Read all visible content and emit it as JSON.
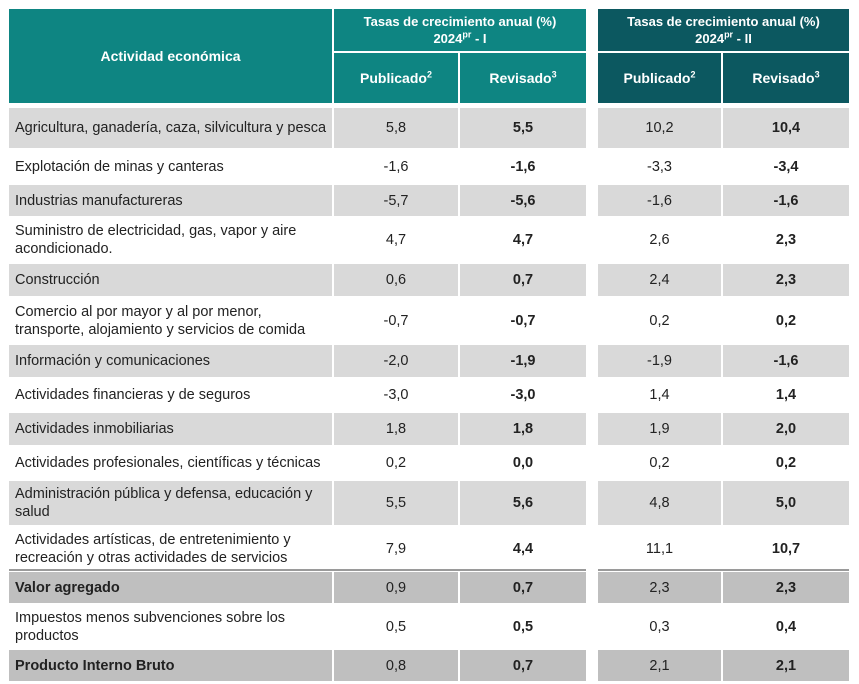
{
  "header": {
    "activity": "Actividad económica",
    "group1": {
      "title": "Tasas de crecimiento anual (%)",
      "year": "2024",
      "year_sup": "pr",
      "period": " - I"
    },
    "group2": {
      "title": "Tasas de crecimiento anual (%)",
      "year": "2024",
      "year_sup": "pr",
      "period": " - II"
    },
    "published": "Publicado",
    "published_sup": "2",
    "revised": "Revisado",
    "revised_sup": "3"
  },
  "rows": [
    {
      "label": "Agricultura, ganadería, caza, silvicultura y pesca",
      "pub1": "5,8",
      "rev1": "5,5",
      "pub2": "10,2",
      "rev2": "10,4"
    },
    {
      "label": "Explotación de minas y canteras",
      "pub1": "-1,6",
      "rev1": "-1,6",
      "pub2": "-3,3",
      "rev2": "-3,4"
    },
    {
      "label": "Industrias manufactureras",
      "pub1": "-5,7",
      "rev1": "-5,6",
      "pub2": "-1,6",
      "rev2": "-1,6"
    },
    {
      "label": "Suministro de electricidad, gas, vapor y aire acondicionado.",
      "pub1": "4,7",
      "rev1": "4,7",
      "pub2": "2,6",
      "rev2": "2,3"
    },
    {
      "label": "Construcción",
      "pub1": "0,6",
      "rev1": "0,7",
      "pub2": "2,4",
      "rev2": "2,3"
    },
    {
      "label": "Comercio al por mayor y al por menor, transporte, alojamiento y servicios de comida",
      "pub1": "-0,7",
      "rev1": "-0,7",
      "pub2": "0,2",
      "rev2": "0,2"
    },
    {
      "label": "Información y comunicaciones",
      "pub1": "-2,0",
      "rev1": "-1,9",
      "pub2": "-1,9",
      "rev2": "-1,6"
    },
    {
      "label": "Actividades financieras y de seguros",
      "pub1": "-3,0",
      "rev1": "-3,0",
      "pub2": "1,4",
      "rev2": "1,4"
    },
    {
      "label": "Actividades inmobiliarias",
      "pub1": "1,8",
      "rev1": "1,8",
      "pub2": "1,9",
      "rev2": "2,0"
    },
    {
      "label": "Actividades profesionales, científicas y técnicas",
      "pub1": "0,2",
      "rev1": "0,0",
      "pub2": "0,2",
      "rev2": "0,2"
    },
    {
      "label": "Administración pública y defensa, educación y salud",
      "pub1": "5,5",
      "rev1": "5,6",
      "pub2": "4,8",
      "rev2": "5,0"
    },
    {
      "label": "Actividades artísticas, de entretenimiento y recreación y otras actividades de servicios",
      "pub1": "7,9",
      "rev1": "4,4",
      "pub2": "11,1",
      "rev2": "10,7"
    },
    {
      "label": "Valor agregado",
      "pub1": "0,9",
      "rev1": "0,7",
      "pub2": "2,3",
      "rev2": "2,3"
    },
    {
      "label": "Impuestos menos subvenciones sobre los productos",
      "pub1": "0,5",
      "rev1": "0,5",
      "pub2": "0,3",
      "rev2": "0,4"
    },
    {
      "label": "Producto Interno Bruto",
      "pub1": "0,8",
      "rev1": "0,7",
      "pub2": "2,1",
      "rev2": "2,1"
    }
  ],
  "colors": {
    "header_teal": "#0e8582",
    "header_dark": "#0c5860",
    "row_shade": "#d9d9d9",
    "total_shade": "#bfbfbf",
    "text": "#222222"
  }
}
